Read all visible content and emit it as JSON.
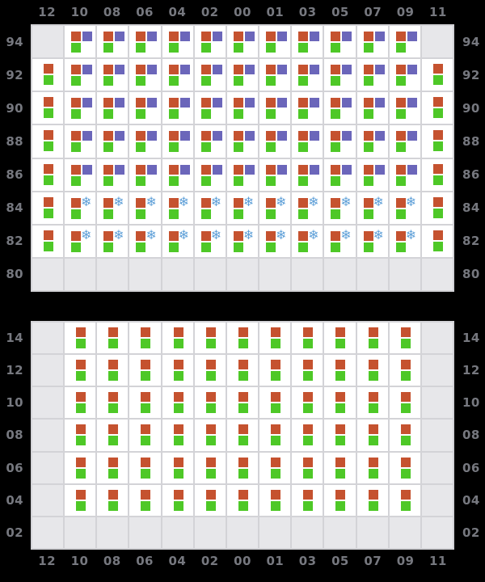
{
  "chart_data": {
    "type": "heatmap",
    "title": "",
    "legend_position": "none",
    "grid": true,
    "x_labels": [
      "12",
      "10",
      "08",
      "06",
      "04",
      "02",
      "00",
      "01",
      "03",
      "05",
      "07",
      "09",
      "11"
    ],
    "top_panel": {
      "y_labels": [
        "94",
        "92",
        "90",
        "88",
        "86",
        "84",
        "82",
        "80"
      ],
      "rows": [
        [
          "none",
          "opg",
          "opg",
          "opg",
          "opg",
          "opg",
          "opg",
          "opg",
          "opg",
          "opg",
          "opg",
          "opg",
          "none"
        ],
        [
          "og",
          "opg",
          "opg",
          "opg",
          "opg",
          "opg",
          "opg",
          "opg",
          "opg",
          "opg",
          "opg",
          "opg",
          "og"
        ],
        [
          "og",
          "opg",
          "opg",
          "opg",
          "opg",
          "opg",
          "opg",
          "opg",
          "opg",
          "opg",
          "opg",
          "opg",
          "og"
        ],
        [
          "og",
          "opg",
          "opg",
          "opg",
          "opg",
          "opg",
          "opg",
          "opg",
          "opg",
          "opg",
          "opg",
          "opg",
          "og"
        ],
        [
          "og",
          "opg",
          "opg",
          "opg",
          "opg",
          "opg",
          "opg",
          "opg",
          "opg",
          "opg",
          "opg",
          "opg",
          "og"
        ],
        [
          "og",
          "osg",
          "osg",
          "osg",
          "osg",
          "osg",
          "osg",
          "osg",
          "osg",
          "osg",
          "osg",
          "osg",
          "og"
        ],
        [
          "og",
          "osg",
          "osg",
          "osg",
          "osg",
          "osg",
          "osg",
          "osg",
          "osg",
          "osg",
          "osg",
          "osg",
          "og"
        ],
        [
          "none",
          "none",
          "none",
          "none",
          "none",
          "none",
          "none",
          "none",
          "none",
          "none",
          "none",
          "none",
          "none"
        ]
      ]
    },
    "bottom_panel": {
      "y_labels": [
        "14",
        "12",
        "10",
        "08",
        "06",
        "04",
        "02"
      ],
      "rows": [
        [
          "none",
          "og",
          "og",
          "og",
          "og",
          "og",
          "og",
          "og",
          "og",
          "og",
          "og",
          "og",
          "none"
        ],
        [
          "none",
          "og",
          "og",
          "og",
          "og",
          "og",
          "og",
          "og",
          "og",
          "og",
          "og",
          "og",
          "none"
        ],
        [
          "none",
          "og",
          "og",
          "og",
          "og",
          "og",
          "og",
          "og",
          "og",
          "og",
          "og",
          "og",
          "none"
        ],
        [
          "none",
          "og",
          "og",
          "og",
          "og",
          "og",
          "og",
          "og",
          "og",
          "og",
          "og",
          "og",
          "none"
        ],
        [
          "none",
          "og",
          "og",
          "og",
          "og",
          "og",
          "og",
          "og",
          "og",
          "og",
          "og",
          "og",
          "none"
        ],
        [
          "none",
          "og",
          "og",
          "og",
          "og",
          "og",
          "og",
          "og",
          "og",
          "og",
          "og",
          "og",
          "none"
        ],
        [
          "none",
          "none",
          "none",
          "none",
          "none",
          "none",
          "none",
          "none",
          "none",
          "none",
          "none",
          "none",
          "none"
        ]
      ]
    },
    "marker_key": {
      "opg": [
        "orange-square",
        "purple-square",
        "green-square"
      ],
      "osg": [
        "orange-square",
        "snowflake-icon",
        "green-square"
      ],
      "og": [
        "orange-square",
        "green-square"
      ],
      "none": []
    }
  },
  "icons": {
    "snowflake": "❄"
  },
  "colors": {
    "background": "#000000",
    "cell": "#ffffff",
    "cell_empty": "#e7e7ea",
    "grid_line": "#d3d3d7",
    "label": "#76787f",
    "orange": "#c5522f",
    "green": "#4ec827",
    "purple": "#6b66ba",
    "snowflake": "#5fa0d8"
  }
}
